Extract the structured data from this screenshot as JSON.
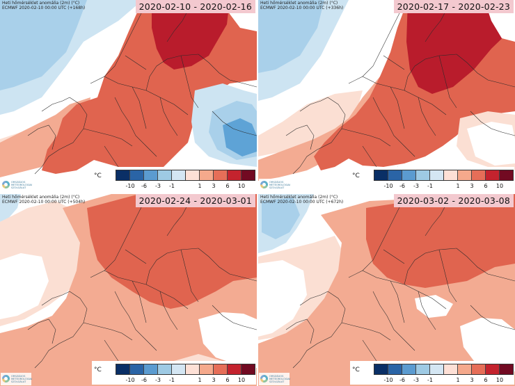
{
  "header": {
    "title": "Heti hőmérséklet anomália (2m) (°C)",
    "source_prefix": "ECMWF"
  },
  "logo": {
    "lines": [
      "ORSZÁGOS",
      "METEOROLÓGIAI",
      "SZOLGÁLAT"
    ]
  },
  "legend": {
    "unit": "°C",
    "cold": {
      "colors": [
        "#0a2f66",
        "#2a64a6",
        "#5b9bd0",
        "#9ecae4",
        "#d4e6f3"
      ],
      "ticks": [
        "-10",
        "-6",
        "-3",
        "-1"
      ]
    },
    "warm": {
      "colors": [
        "#fde0d6",
        "#f5a98c",
        "#e66e58",
        "#c4232e",
        "#720a22"
      ],
      "ticks": [
        "1",
        "3",
        "6",
        "10"
      ]
    }
  },
  "panels": [
    {
      "date_range": "2020-02-10 - 2020-02-16",
      "run_info": "2020-02-10 00:00 UTC (+168h)"
    },
    {
      "date_range": "2020-02-17 - 2020-02-23",
      "run_info": "2020-02-10 00:00 UTC (+336h)"
    },
    {
      "date_range": "2020-02-24 - 2020-03-01",
      "run_info": "2020-02-10 00:00 UTC (+504h)"
    },
    {
      "date_range": "2020-03-02 - 2020-03-08",
      "run_info": "2020-02-10 00:00 UTC (+672h)"
    }
  ],
  "map_colors": {
    "white": "#ffffff",
    "pale_pink": "#fbdfd3",
    "light_orange": "#f3ab92",
    "orange_red": "#e0644f",
    "dark_red": "#b91c2c",
    "light_blue": "#cde4f2",
    "mid_blue": "#a9d0ea",
    "deep_blue": "#5ea3d6",
    "borders": "#2a2a2a"
  }
}
